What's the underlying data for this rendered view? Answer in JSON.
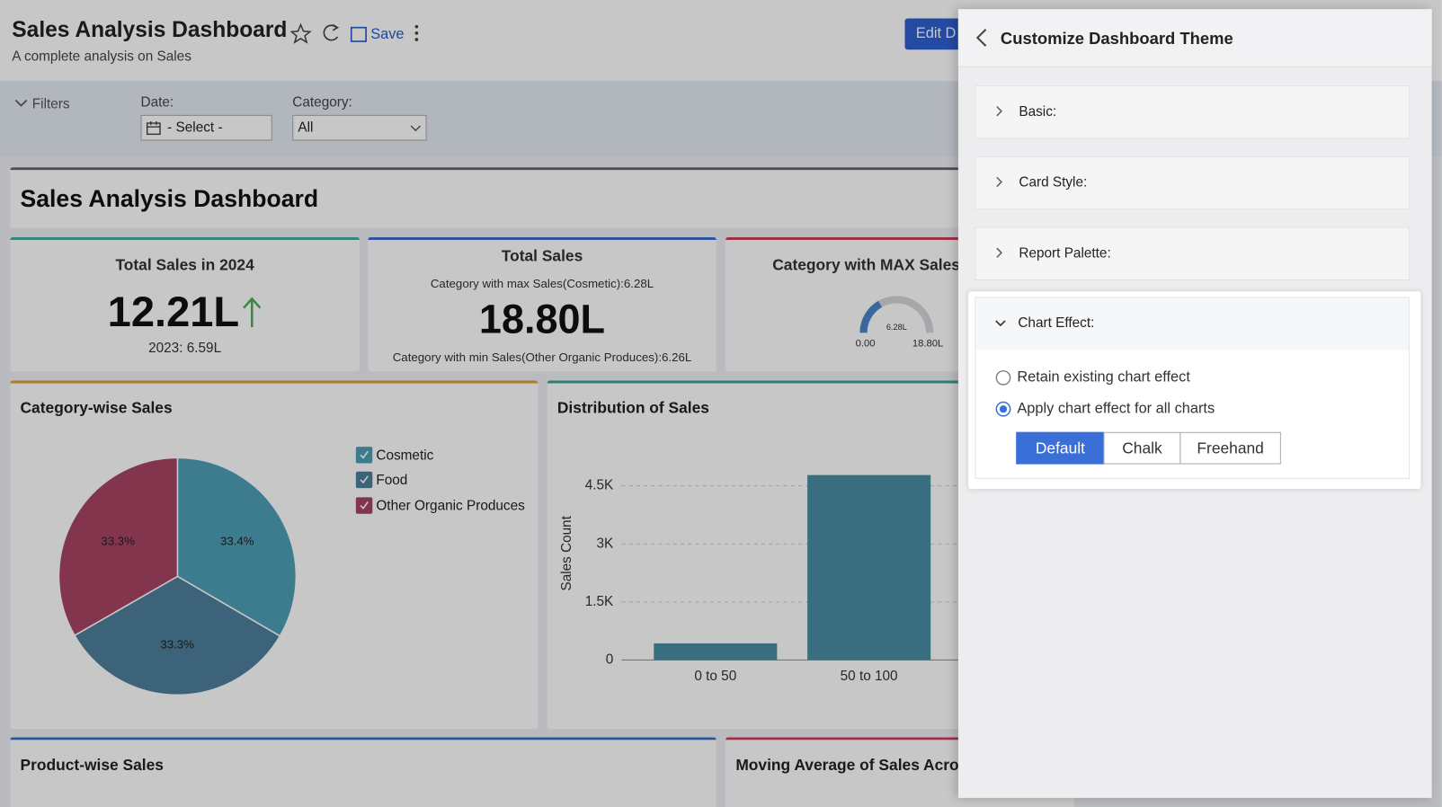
{
  "header": {
    "title": "Sales Analysis Dashboard",
    "subtitle": "A complete analysis on Sales",
    "save": "Save",
    "edit": "Edit D"
  },
  "filters": {
    "toggle": "Filters",
    "date": {
      "label": "Date:",
      "value": "- Select -"
    },
    "category": {
      "label": "Category:",
      "value": "All"
    }
  },
  "dashboard_title": "Sales Analysis Dashboard",
  "kpis": {
    "total_2024": {
      "title": "Total Sales in 2024",
      "value": "12.21L",
      "comparison": "2023: 6.59L"
    },
    "total": {
      "title": "Total Sales",
      "max_note": "Category with max Sales(Cosmetic):6.28L",
      "value": "18.80L",
      "min_note": "Category with min Sales(Other Organic Produces):6.26L"
    },
    "max_category": {
      "title": "Category with MAX Sales(",
      "gauge": {
        "value": 6.28,
        "value_label": "6.28L",
        "min": {
          "value": 0,
          "label": "0.00"
        },
        "max": {
          "value": 18.8,
          "label": "18.80L"
        },
        "color": "#4a86c9"
      }
    }
  },
  "pie_chart": {
    "type": "pie",
    "title": "Category-wise Sales",
    "categories": [
      "Cosmetic",
      "Food",
      "Other Organic Produces"
    ],
    "values": [
      33.4,
      33.3,
      33.3
    ],
    "value_labels": [
      "33.4%",
      "33.3%",
      "33.3%"
    ],
    "colors": [
      "#4f9fb7",
      "#4d7f9c",
      "#a84463"
    ]
  },
  "bar_chart": {
    "type": "bar",
    "title": "Distribution of Sales",
    "y_label": "Sales Count",
    "categories": [
      "0 to 50",
      "50 to 100"
    ],
    "values": [
      430,
      4780
    ],
    "color": "#4a8ea6",
    "ylim": [
      0,
      5250
    ],
    "yticks": [
      0,
      {
        "value": 1500,
        "label": "1.5K"
      },
      {
        "value": 3000,
        "label": "3K"
      },
      {
        "value": 4500,
        "label": "4.5K"
      }
    ],
    "grid": true
  },
  "bottom_cards": [
    "Product-wise Sales",
    "Moving Average of Sales Across"
  ],
  "panel": {
    "title": "Customize Dashboard Theme",
    "sections": [
      "Basic:",
      "Card Style:",
      "Report Palette:",
      "Chart Effect:"
    ],
    "options": [
      "Retain existing chart effect",
      "Apply chart effect for all charts"
    ],
    "effects": [
      "Default",
      "Chalk",
      "Freehand"
    ]
  }
}
